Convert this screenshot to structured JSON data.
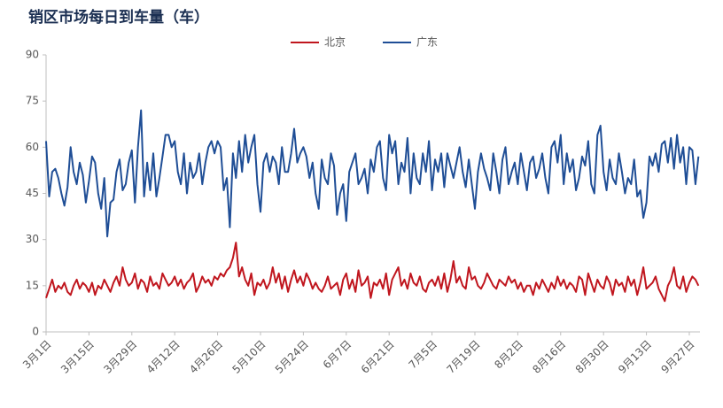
{
  "chart_data": {
    "type": "line",
    "title": "销区市场每日到车量（车）",
    "categories": [
      "3月1日",
      null,
      null,
      null,
      null,
      null,
      null,
      null,
      null,
      null,
      null,
      null,
      null,
      null,
      "3月15日",
      null,
      null,
      null,
      null,
      null,
      null,
      null,
      null,
      null,
      null,
      null,
      null,
      null,
      "3月29日",
      null,
      null,
      null,
      null,
      null,
      null,
      null,
      null,
      null,
      null,
      null,
      null,
      null,
      "4月12日",
      null,
      null,
      null,
      null,
      null,
      null,
      null,
      null,
      null,
      null,
      null,
      null,
      null,
      "4月26日",
      null,
      null,
      null,
      null,
      null,
      null,
      null,
      null,
      null,
      null,
      null,
      null,
      null,
      "5月10日",
      null,
      null,
      null,
      null,
      null,
      null,
      null,
      null,
      null,
      null,
      null,
      null,
      null,
      "5月24日",
      null,
      null,
      null,
      null,
      null,
      null,
      null,
      null,
      null,
      null,
      null,
      null,
      null,
      "6月7日",
      null,
      null,
      null,
      null,
      null,
      null,
      null,
      null,
      null,
      null,
      null,
      null,
      null,
      "6月21日",
      null,
      null,
      null,
      null,
      null,
      null,
      null,
      null,
      null,
      null,
      null,
      null,
      null,
      "7月5日",
      null,
      null,
      null,
      null,
      null,
      null,
      null,
      null,
      null,
      null,
      null,
      null,
      null,
      "7月19日",
      null,
      null,
      null,
      null,
      null,
      null,
      null,
      null,
      null,
      null,
      null,
      null,
      null,
      "8月2日",
      null,
      null,
      null,
      null,
      null,
      null,
      null,
      null,
      null,
      null,
      null,
      null,
      null,
      "8月16日",
      null,
      null,
      null,
      null,
      null,
      null,
      null,
      null,
      null,
      null,
      null,
      null,
      null,
      "8月30日",
      null,
      null,
      null,
      null,
      null,
      null,
      null,
      null,
      null,
      null,
      null,
      null,
      null,
      "9月13日",
      null,
      null,
      null,
      null,
      null,
      null,
      null,
      null,
      null,
      null,
      null,
      null,
      null,
      "9月27日",
      null,
      null,
      null
    ],
    "series": [
      {
        "name": "北京",
        "color": "#c0161e",
        "values": [
          11,
          14,
          17,
          13,
          15,
          14,
          16,
          13,
          12,
          15,
          17,
          14,
          16,
          15,
          13,
          16,
          12,
          15,
          14,
          17,
          15,
          13,
          16,
          18,
          15,
          21,
          17,
          15,
          16,
          19,
          14,
          17,
          16,
          13,
          18,
          15,
          16,
          14,
          19,
          17,
          15,
          16,
          18,
          15,
          17,
          14,
          16,
          17,
          19,
          13,
          15,
          18,
          16,
          17,
          15,
          18,
          17,
          19,
          18,
          20,
          21,
          24,
          29,
          18,
          21,
          17,
          15,
          19,
          12,
          16,
          15,
          17,
          14,
          16,
          21,
          16,
          19,
          14,
          18,
          13,
          17,
          20,
          16,
          18,
          15,
          19,
          17,
          14,
          16,
          14,
          13,
          15,
          18,
          14,
          15,
          16,
          12,
          17,
          19,
          14,
          17,
          13,
          20,
          15,
          16,
          18,
          11,
          16,
          15,
          17,
          14,
          19,
          12,
          17,
          19,
          21,
          15,
          17,
          14,
          19,
          16,
          15,
          18,
          14,
          13,
          16,
          17,
          15,
          18,
          14,
          19,
          13,
          17,
          23,
          16,
          18,
          15,
          14,
          21,
          17,
          18,
          15,
          14,
          16,
          19,
          17,
          15,
          14,
          17,
          16,
          15,
          18,
          16,
          17,
          14,
          16,
          13,
          15,
          15,
          12,
          16,
          14,
          17,
          15,
          13,
          16,
          14,
          18,
          15,
          17,
          14,
          16,
          15,
          13,
          18,
          17,
          12,
          19,
          16,
          13,
          17,
          15,
          14,
          18,
          16,
          12,
          17,
          15,
          16,
          13,
          18,
          15,
          17,
          12,
          16,
          21,
          14,
          15,
          16,
          18,
          14,
          12,
          10,
          15,
          17,
          21,
          15,
          14,
          18,
          13,
          16,
          18,
          17,
          15
        ]
      },
      {
        "name": "广东",
        "color": "#1f4e96",
        "values": [
          62,
          44,
          52,
          53,
          50,
          45,
          41,
          47,
          60,
          52,
          48,
          55,
          51,
          42,
          49,
          57,
          55,
          45,
          40,
          50,
          31,
          42,
          43,
          52,
          56,
          46,
          48,
          55,
          59,
          42,
          60,
          72,
          44,
          55,
          46,
          58,
          44,
          50,
          57,
          64,
          64,
          60,
          62,
          52,
          48,
          58,
          45,
          55,
          50,
          52,
          58,
          48,
          55,
          60,
          62,
          58,
          62,
          60,
          46,
          50,
          34,
          58,
          50,
          62,
          52,
          64,
          55,
          60,
          64,
          48,
          39,
          55,
          58,
          52,
          57,
          55,
          48,
          60,
          52,
          52,
          58,
          66,
          55,
          58,
          60,
          57,
          50,
          55,
          45,
          40,
          56,
          50,
          48,
          58,
          54,
          38,
          45,
          48,
          36,
          52,
          55,
          58,
          48,
          50,
          53,
          45,
          56,
          52,
          60,
          62,
          50,
          46,
          64,
          58,
          62,
          48,
          55,
          52,
          63,
          45,
          58,
          50,
          48,
          58,
          52,
          62,
          46,
          56,
          52,
          58,
          47,
          58,
          54,
          50,
          55,
          60,
          52,
          47,
          56,
          48,
          40,
          52,
          58,
          53,
          50,
          46,
          58,
          52,
          45,
          56,
          60,
          48,
          52,
          55,
          48,
          58,
          52,
          46,
          55,
          57,
          50,
          53,
          58,
          50,
          45,
          60,
          62,
          55,
          64,
          48,
          58,
          52,
          56,
          46,
          50,
          57,
          54,
          62,
          48,
          45,
          64,
          67,
          52,
          46,
          56,
          50,
          48,
          58,
          52,
          45,
          50,
          48,
          56,
          44,
          46,
          37,
          42,
          57,
          54,
          58,
          52,
          61,
          62,
          55,
          63,
          53,
          64,
          55,
          60,
          48,
          60,
          59,
          48,
          57
        ]
      }
    ],
    "ylim": [
      0,
      90
    ],
    "yticks": [
      0,
      15,
      30,
      45,
      60,
      75,
      90
    ],
    "grid": false
  }
}
